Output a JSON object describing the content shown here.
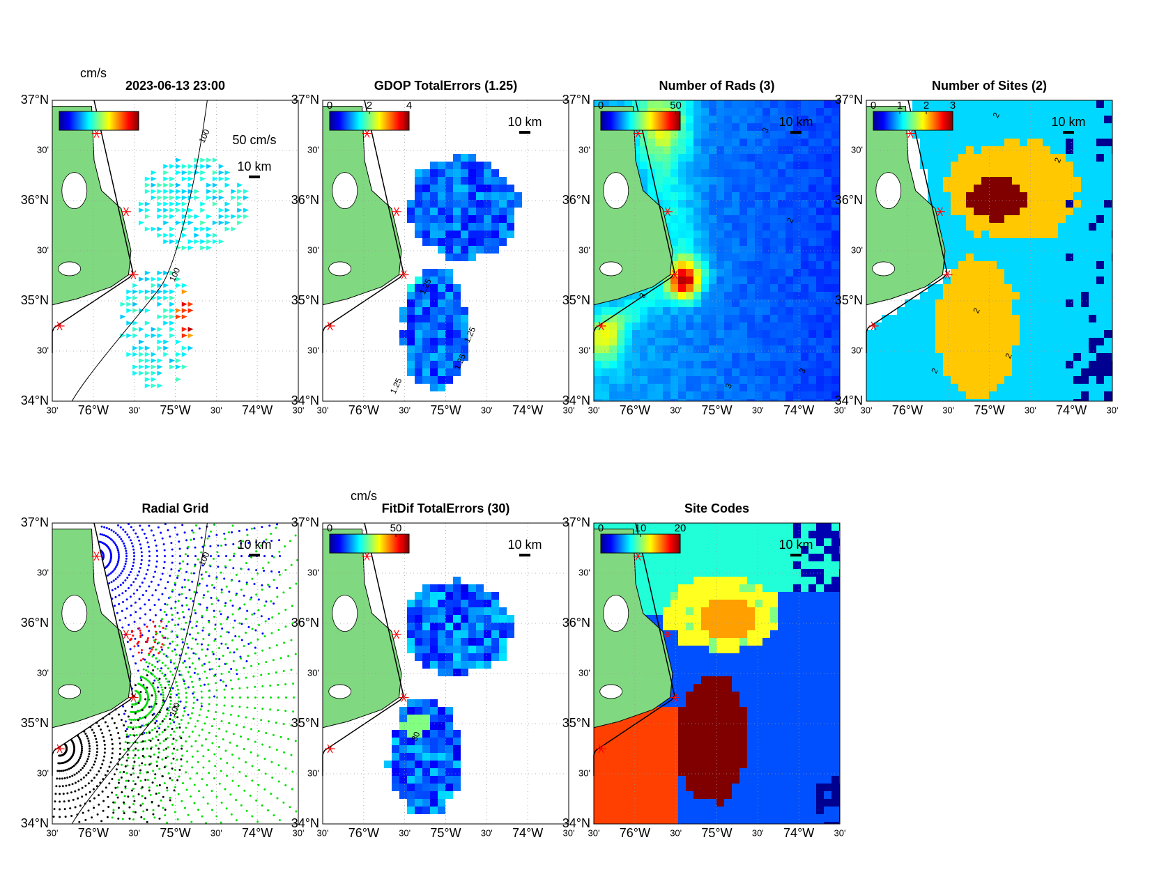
{
  "lat_labels": [
    "37°N",
    "30'",
    "36°N",
    "30'",
    "35°N",
    "30'",
    "34°N"
  ],
  "lon_labels": [
    "30'",
    "76°W",
    "30'",
    "75°W",
    "30'",
    "74°W",
    "30'"
  ],
  "panels": [
    {
      "title": "2023-06-13 23:00",
      "colorbar": {
        "label": "cm/s"
      },
      "scale_labels": [
        "50 cm/s",
        "10 km"
      ],
      "contour_labels": [
        "100",
        "100"
      ]
    },
    {
      "title": "GDOP TotalErrors (1.25)",
      "colorbar": {
        "ticks": [
          0,
          2,
          4
        ],
        "lim": [
          0,
          4
        ]
      },
      "scale_labels": [
        "10 km"
      ],
      "contour_labels": [
        "1.25",
        "1.25",
        "1.25",
        "1.25"
      ]
    },
    {
      "title": "Number of Rads (3)",
      "colorbar": {
        "ticks": [
          0,
          50
        ],
        "lim": [
          0,
          53
        ]
      },
      "scale_labels": [
        "10 km"
      ],
      "contour_labels": [
        "3",
        "3",
        "2",
        "3",
        "3"
      ]
    },
    {
      "title": "Number of Sites (2)",
      "colorbar": {
        "ticks": [
          0,
          1,
          2,
          3
        ],
        "lim": [
          0,
          3
        ]
      },
      "scale_labels": [
        "10 km"
      ],
      "contour_labels": [
        "2",
        "2",
        "2",
        "2",
        "2"
      ]
    },
    {
      "title": "Radial Grid",
      "scale_labels": [
        "10 km"
      ],
      "contour_labels": [
        "100",
        "100"
      ]
    },
    {
      "title": "FitDif TotalErrors (30)",
      "colorbar": {
        "label": "cm/s",
        "ticks": [
          0,
          50
        ],
        "lim": [
          0,
          60
        ]
      },
      "scale_labels": [
        "10 km"
      ],
      "contour_labels": [
        "30"
      ]
    },
    {
      "title": "Site Codes",
      "colorbar": {
        "ticks": [
          0,
          10,
          20
        ],
        "lim": [
          0,
          20
        ]
      },
      "scale_labels": [
        "10 km"
      ]
    }
  ]
}
